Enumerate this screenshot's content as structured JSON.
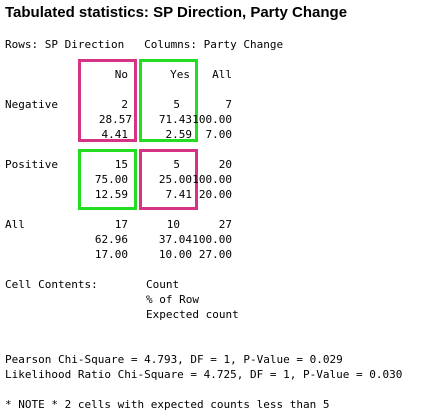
{
  "title": "Tabulated statistics: SP Direction, Party Change",
  "rows_cols_line": "Rows: SP Direction   Columns: Party Change",
  "col_headers": [
    "No",
    "Yes",
    "All"
  ],
  "rows": [
    {
      "label": "Negative",
      "count": [
        "2",
        "5",
        "7"
      ],
      "pct_row": [
        "28.57",
        "71.43",
        "100.00"
      ],
      "expected": [
        "4.41",
        "2.59",
        "7.00"
      ]
    },
    {
      "label": "Positive",
      "count": [
        "15",
        "5",
        "20"
      ],
      "pct_row": [
        "75.00",
        "25.00",
        "100.00"
      ],
      "expected": [
        "12.59",
        "7.41",
        "20.00"
      ]
    },
    {
      "label": "All",
      "count": [
        "17",
        "10",
        "27"
      ],
      "pct_row": [
        "62.96",
        "37.04",
        "100.00"
      ],
      "expected": [
        "17.00",
        "10.00",
        "27.00"
      ]
    }
  ],
  "cell_contents": {
    "label": "Cell Contents:",
    "items": [
      "Count",
      "% of Row",
      "Expected count"
    ]
  },
  "stats": [
    "Pearson Chi-Square = 4.793, DF = 1, P-Value = 0.029",
    "Likelihood Ratio Chi-Square = 4.725, DF = 1, P-Value = 0.030"
  ],
  "note": "* NOTE * 2 cells with expected counts less than 5",
  "colors": {
    "magenta_box": "#d63384",
    "green_box": "#22dd22"
  }
}
